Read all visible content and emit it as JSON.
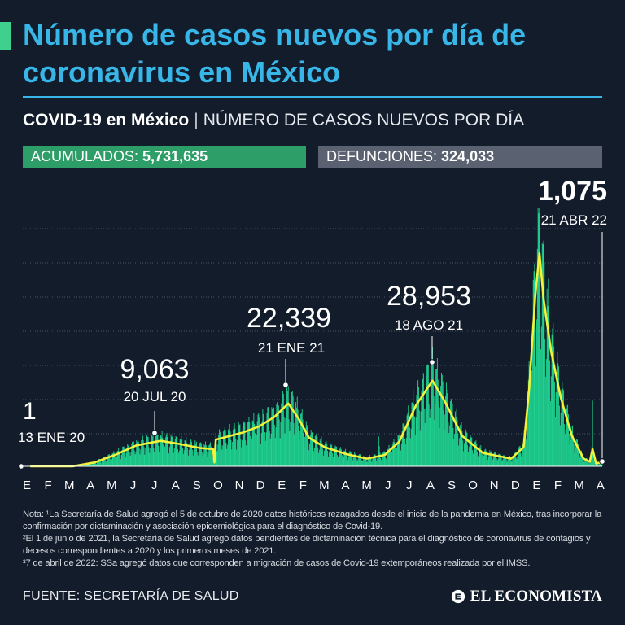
{
  "header": {
    "title": "Número de casos nuevos por día de coronavirus en México",
    "subtitle_bold": "COVID-19 en México",
    "subtitle_separator": "|",
    "subtitle_rest": "NÚMERO DE CASOS NUEVOS POR DÍA"
  },
  "stats": {
    "acumulados_label": "ACUMULADOS:",
    "acumulados_value": "5,731,635",
    "defunciones_label": "DEFUNCIONES:",
    "defunciones_value": "324,033"
  },
  "colors": {
    "background": "#131c2a",
    "title": "#38b6e8",
    "bars": "#1fd290",
    "average_line": "#f2f23a",
    "acumulados_box": "#2e9e68",
    "defunciones_box": "#5a6170"
  },
  "chart_data": {
    "type": "bar",
    "description_overlay": "daily bars with moving-average line",
    "x_tick_labels": [
      "E",
      "F",
      "M",
      "A",
      "M",
      "J",
      "J",
      "A",
      "S",
      "O",
      "N",
      "D",
      "E",
      "F",
      "M",
      "A",
      "M",
      "J",
      "J",
      "A",
      "S",
      "O",
      "N",
      "D",
      "E",
      "F",
      "M",
      "A"
    ],
    "x_range": [
      "2020-01-01",
      "2022-04-21"
    ],
    "grid": "horizontal dotted lines",
    "smoothed_series": [
      {
        "date": "2020-01-13",
        "value": 1
      },
      {
        "date": "2020-03-15",
        "value": 20
      },
      {
        "date": "2020-04-15",
        "value": 1000
      },
      {
        "date": "2020-05-15",
        "value": 3000
      },
      {
        "date": "2020-06-15",
        "value": 5500
      },
      {
        "date": "2020-07-20",
        "value": 6700
      },
      {
        "date": "2020-08-15",
        "value": 5900
      },
      {
        "date": "2020-09-15",
        "value": 4800
      },
      {
        "date": "2020-10-04",
        "value": 4500
      },
      {
        "date": "2020-10-06",
        "value": 1000
      },
      {
        "date": "2020-10-08",
        "value": 7000
      },
      {
        "date": "2020-11-15",
        "value": 8800
      },
      {
        "date": "2020-12-10",
        "value": 10500
      },
      {
        "date": "2021-01-01",
        "value": 13000
      },
      {
        "date": "2021-01-21",
        "value": 16500
      },
      {
        "date": "2021-02-05",
        "value": 12500
      },
      {
        "date": "2021-02-20",
        "value": 7500
      },
      {
        "date": "2021-03-15",
        "value": 5000
      },
      {
        "date": "2021-04-15",
        "value": 3200
      },
      {
        "date": "2021-05-15",
        "value": 2000
      },
      {
        "date": "2021-06-10",
        "value": 3000
      },
      {
        "date": "2021-07-01",
        "value": 6500
      },
      {
        "date": "2021-07-25",
        "value": 16000
      },
      {
        "date": "2021-08-18",
        "value": 22500
      },
      {
        "date": "2021-09-05",
        "value": 17000
      },
      {
        "date": "2021-09-30",
        "value": 8000
      },
      {
        "date": "2021-10-30",
        "value": 3500
      },
      {
        "date": "2021-12-10",
        "value": 2000
      },
      {
        "date": "2021-12-28",
        "value": 5000
      },
      {
        "date": "2022-01-05",
        "value": 20000
      },
      {
        "date": "2022-01-14",
        "value": 45000
      },
      {
        "date": "2022-01-20",
        "value": 56000
      },
      {
        "date": "2022-01-26",
        "value": 44000
      },
      {
        "date": "2022-02-06",
        "value": 30000
      },
      {
        "date": "2022-02-20",
        "value": 18000
      },
      {
        "date": "2022-03-08",
        "value": 8000
      },
      {
        "date": "2022-03-25",
        "value": 2000
      },
      {
        "date": "2022-04-03",
        "value": 1200
      },
      {
        "date": "2022-04-07",
        "value": 4500
      },
      {
        "date": "2022-04-12",
        "value": 800
      },
      {
        "date": "2022-04-21",
        "value": 1075
      }
    ],
    "annotations": [
      {
        "label": "primer-caso",
        "value": "1",
        "date": "13 ENE 20",
        "x": "2020-01-13",
        "y": 1
      },
      {
        "label": "pico-2020",
        "value": "9,063",
        "date": "20 JUL 20",
        "x": "2020-07-20",
        "y": 9063
      },
      {
        "label": "pico-enero-2021",
        "value": "22,339",
        "date": "21 ENE 21",
        "x": "2021-01-21",
        "y": 22339
      },
      {
        "label": "pico-agosto-2021",
        "value": "28,953",
        "date": "18 AGO 21",
        "x": "2021-08-18",
        "y": 28953
      },
      {
        "label": "ultimo-dato",
        "value": "1,075",
        "date": "21 ABR 22",
        "x": "2022-04-21",
        "y": 1075
      }
    ]
  },
  "notes": {
    "line1": "Nota: ¹La Secretaría de Salud agregó el 5 de octubre de 2020 datos históricos rezagados desde el inicio de la pandemia en México, tras incorporar la confirmación por dictaminación y asociación epidemiológica para el diagnóstico de Covid-19.",
    "line2": "²El 1 de junio de 2021, la Secretaría de Salud agregó datos pendientes de dictaminación técnica para el diagnóstico de coronavirus de contagios y decesos correspondientes a 2020 y los primeros meses de 2021.",
    "line3": "³7 de abril de 2022: SSa agregó datos que corresponden a migración de casos de Covid-19 extemporáneos realizada por el IMSS."
  },
  "footer": {
    "source": "FUENTE: SECRETARÍA DE SALUD",
    "brand": "EL ECONOMISTA",
    "brand_icon": "el-economista-logo-icon"
  }
}
